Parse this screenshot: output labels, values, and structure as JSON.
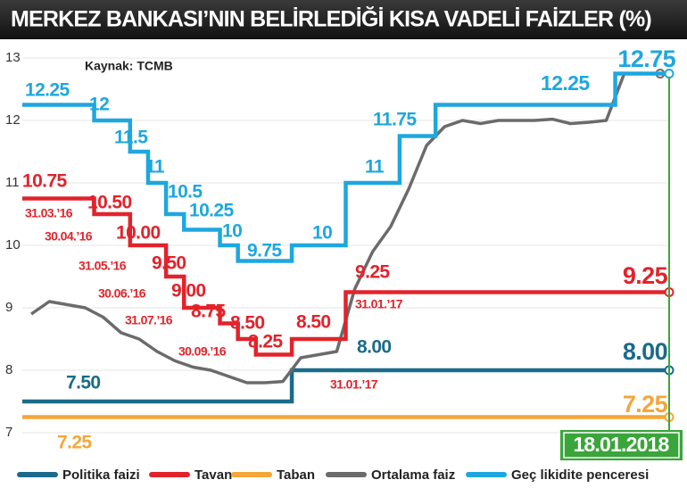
{
  "chart_data": {
    "type": "step-line",
    "title": "MERKEZ BANKASI’NIN BELİRLEDİĞİ KISA VADELİ FAİZLER (%)",
    "source": "Kaynak: TCMB",
    "date": "18.01.2018",
    "ylim": [
      7,
      13
    ],
    "yticks": [
      7,
      8,
      9,
      10,
      11,
      12,
      13
    ],
    "grid": true,
    "categories": [
      null,
      null,
      null,
      null,
      null,
      null,
      null,
      null,
      null,
      null,
      null,
      null,
      null,
      null,
      null,
      null,
      null,
      null,
      null,
      null,
      null,
      null,
      null,
      null,
      null,
      null,
      null,
      null,
      null,
      null,
      null,
      null,
      null,
      null,
      null,
      null
    ],
    "series": [
      {
        "name": "Politika faizi",
        "color": "#1b6b8a",
        "style": "step",
        "values": [
          7.5,
          7.5,
          7.5,
          7.5,
          7.5,
          7.5,
          7.5,
          7.5,
          7.5,
          7.5,
          7.5,
          7.5,
          7.5,
          7.5,
          7.5,
          8,
          8,
          8,
          8,
          8,
          8,
          8,
          8,
          8,
          8,
          8,
          8,
          8,
          8,
          8,
          8,
          8,
          8,
          8,
          8,
          8
        ]
      },
      {
        "name": "Tavan",
        "color": "#e2232b",
        "style": "step",
        "values": [
          10.75,
          10.75,
          10.75,
          10.75,
          10.5,
          10.5,
          10,
          10,
          9.5,
          9,
          9,
          8.75,
          8.5,
          8.25,
          8.25,
          8.5,
          8.5,
          8.5,
          9.25,
          9.25,
          9.25,
          9.25,
          9.25,
          9.25,
          9.25,
          9.25,
          9.25,
          9.25,
          9.25,
          9.25,
          9.25,
          9.25,
          9.25,
          9.25,
          9.25,
          9.25
        ]
      },
      {
        "name": "Taban",
        "color": "#f4a638",
        "style": "step",
        "values": [
          7.25,
          7.25,
          7.25,
          7.25,
          7.25,
          7.25,
          7.25,
          7.25,
          7.25,
          7.25,
          7.25,
          7.25,
          7.25,
          7.25,
          7.25,
          7.25,
          7.25,
          7.25,
          7.25,
          7.25,
          7.25,
          7.25,
          7.25,
          7.25,
          7.25,
          7.25,
          7.25,
          7.25,
          7.25,
          7.25,
          7.25,
          7.25,
          7.25,
          7.25,
          7.25,
          7.25
        ]
      },
      {
        "name": "Ortalama faiz",
        "color": "#6b6b6b",
        "style": "line",
        "values": [
          8.9,
          9.1,
          9.05,
          9.0,
          8.85,
          8.6,
          8.5,
          8.3,
          8.15,
          8.05,
          8.0,
          7.9,
          7.8,
          7.8,
          7.82,
          8.2,
          8.25,
          8.3,
          9.3,
          9.9,
          10.3,
          10.9,
          11.6,
          11.9,
          12.0,
          11.95,
          12.0,
          12.0,
          12.0,
          12.02,
          11.95,
          11.97,
          12.0,
          12.75,
          12.75,
          12.75
        ]
      },
      {
        "name": "Geç likidite penceresi",
        "color": "#1ea7df",
        "style": "step",
        "values": [
          12.25,
          12.25,
          12.25,
          12.25,
          12,
          12,
          11.5,
          11,
          10.5,
          10.25,
          10.25,
          10,
          9.75,
          9.75,
          9.75,
          10,
          10,
          10,
          11,
          11,
          11,
          11.75,
          11.75,
          12.25,
          12.25,
          12.25,
          12.25,
          12.25,
          12.25,
          12.25,
          12.25,
          12.25,
          12.25,
          12.75,
          12.75,
          12.75
        ]
      }
    ],
    "annotations": [
      {
        "text": "12.25",
        "color": "#1ea7df"
      },
      {
        "text": "12",
        "color": "#1ea7df"
      },
      {
        "text": "11.5",
        "color": "#1ea7df"
      },
      {
        "text": "11",
        "color": "#1ea7df"
      },
      {
        "text": "10.5",
        "color": "#1ea7df"
      },
      {
        "text": "10.25",
        "color": "#1ea7df"
      },
      {
        "text": "10",
        "color": "#1ea7df"
      },
      {
        "text": "9.75",
        "color": "#1ea7df"
      },
      {
        "text": "10",
        "color": "#1ea7df"
      },
      {
        "text": "11",
        "color": "#1ea7df"
      },
      {
        "text": "11.75",
        "color": "#1ea7df"
      },
      {
        "text": "12.25",
        "color": "#1ea7df"
      },
      {
        "text": "12.75",
        "color": "#1ea7df"
      },
      {
        "text": "10.75",
        "color": "#e2232b"
      },
      {
        "text": "10.50",
        "color": "#e2232b"
      },
      {
        "text": "10.00",
        "color": "#e2232b"
      },
      {
        "text": "9.50",
        "color": "#e2232b"
      },
      {
        "text": "9.00",
        "color": "#e2232b"
      },
      {
        "text": "8.75",
        "color": "#e2232b"
      },
      {
        "text": "8.50",
        "color": "#e2232b"
      },
      {
        "text": "8.25",
        "color": "#e2232b"
      },
      {
        "text": "8.50",
        "color": "#e2232b"
      },
      {
        "text": "9.25",
        "color": "#e2232b"
      },
      {
        "text": "9.25",
        "color": "#e2232b"
      },
      {
        "text": "31.03.’16",
        "color": "#e2232b"
      },
      {
        "text": "30.04.’16",
        "color": "#e2232b"
      },
      {
        "text": "31.05.’16",
        "color": "#e2232b"
      },
      {
        "text": "30.06.’16",
        "color": "#e2232b"
      },
      {
        "text": "31.07.’16",
        "color": "#e2232b"
      },
      {
        "text": "30.09.’16",
        "color": "#e2232b"
      },
      {
        "text": "31.01.’17",
        "color": "#e2232b"
      },
      {
        "text": "31.01.’17",
        "color": "#e2232b"
      },
      {
        "text": "7.50",
        "color": "#1b6b8a"
      },
      {
        "text": "8.00",
        "color": "#1b6b8a"
      },
      {
        "text": "8.00",
        "color": "#1b6b8a"
      },
      {
        "text": "7.25",
        "color": "#f4a638"
      },
      {
        "text": "7.25",
        "color": "#f4a638"
      }
    ]
  }
}
